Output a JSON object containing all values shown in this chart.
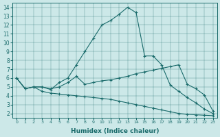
{
  "xlabel": "Humidex (Indice chaleur)",
  "background_color": "#cce8e8",
  "line_color": "#1a6b6b",
  "xlim": [
    -0.5,
    23.5
  ],
  "ylim": [
    1.5,
    14.5
  ],
  "xtick_labels": [
    "0",
    "1",
    "2",
    "3",
    "4",
    "5",
    "6",
    "7",
    "8",
    "9",
    "10",
    "11",
    "12",
    "13",
    "14",
    "15",
    "16",
    "17",
    "18",
    "19",
    "20",
    "21",
    "22",
    "23"
  ],
  "ytick_labels": [
    "2",
    "3",
    "4",
    "5",
    "6",
    "7",
    "8",
    "9",
    "10",
    "11",
    "12",
    "13",
    "14"
  ],
  "xticks": [
    0,
    1,
    2,
    3,
    4,
    5,
    6,
    7,
    8,
    9,
    10,
    11,
    12,
    13,
    14,
    15,
    16,
    17,
    18,
    19,
    20,
    21,
    22,
    23
  ],
  "yticks": [
    2,
    3,
    4,
    5,
    6,
    7,
    8,
    9,
    10,
    11,
    12,
    13,
    14
  ],
  "line1_x": [
    0,
    1,
    2,
    3,
    4,
    5,
    6,
    7,
    8,
    9,
    10,
    11,
    12,
    13,
    14,
    15,
    16,
    17,
    18,
    19,
    20,
    21,
    22,
    23
  ],
  "line1_y": [
    6.0,
    4.8,
    5.0,
    5.0,
    4.7,
    5.5,
    6.0,
    7.5,
    9.0,
    10.5,
    12.0,
    12.5,
    13.2,
    14.0,
    13.4,
    8.5,
    8.5,
    7.5,
    5.2,
    4.5,
    3.8,
    3.2,
    2.5,
    2.0
  ],
  "line2_x": [
    0,
    1,
    2,
    3,
    4,
    5,
    6,
    7,
    8,
    9,
    10,
    11,
    12,
    13,
    14,
    15,
    16,
    17,
    18,
    19,
    20,
    21,
    22,
    23
  ],
  "line2_y": [
    6.0,
    4.8,
    5.0,
    5.0,
    4.8,
    5.0,
    5.5,
    6.2,
    5.3,
    5.5,
    5.7,
    5.8,
    6.0,
    6.2,
    6.5,
    6.7,
    6.9,
    7.1,
    7.3,
    7.5,
    5.3,
    4.8,
    4.1,
    2.3
  ],
  "line3_x": [
    0,
    1,
    2,
    3,
    4,
    5,
    6,
    7,
    8,
    9,
    10,
    11,
    12,
    13,
    14,
    15,
    16,
    17,
    18,
    19,
    20,
    21,
    22,
    23
  ],
  "line3_y": [
    6.0,
    4.8,
    5.0,
    4.5,
    4.3,
    4.2,
    4.1,
    4.0,
    3.9,
    3.8,
    3.7,
    3.6,
    3.4,
    3.2,
    3.0,
    2.8,
    2.6,
    2.4,
    2.2,
    2.0,
    1.9,
    1.85,
    1.8,
    1.75
  ]
}
